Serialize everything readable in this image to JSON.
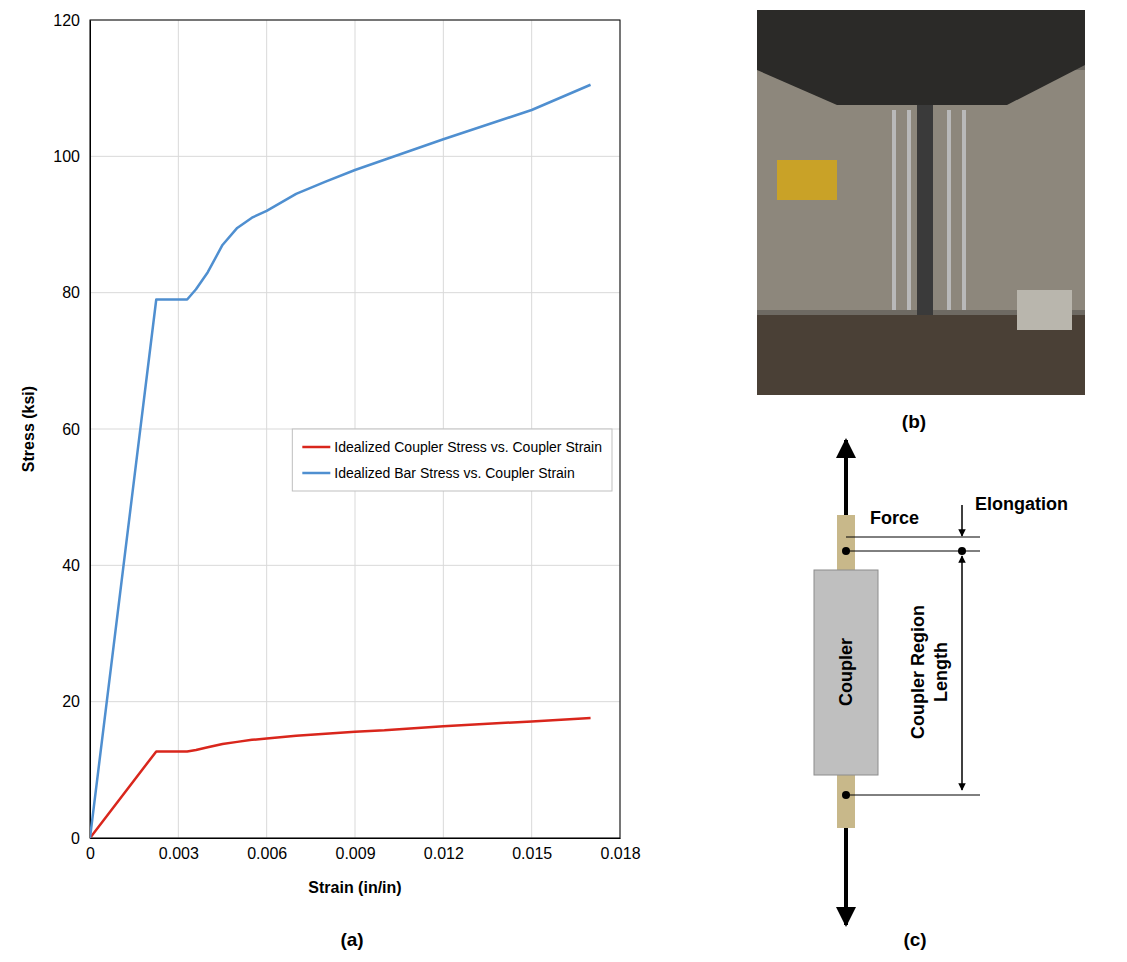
{
  "chart_data": {
    "type": "line",
    "xlabel": "Strain (in/in)",
    "ylabel": "Stress (ksi)",
    "x": [
      0,
      0.00225,
      0.0033,
      0.0036,
      0.004,
      0.0045,
      0.005,
      0.0055,
      0.006,
      0.007,
      0.008,
      0.009,
      0.01,
      0.012,
      0.015,
      0.017
    ],
    "series": [
      {
        "name": "Idealized Coupler Stress vs. Coupler Strain",
        "color": "#d9261c",
        "values": [
          0,
          12.7,
          12.7,
          12.9,
          13.3,
          13.8,
          14.1,
          14.4,
          14.6,
          15.0,
          15.3,
          15.6,
          15.8,
          16.4,
          17.1,
          17.6
        ]
      },
      {
        "name": "Idealized Bar Stress vs. Coupler Strain",
        "color": "#4f8fd0",
        "values": [
          0,
          79,
          79,
          80.5,
          83,
          87,
          89.5,
          91,
          92,
          94.5,
          96.3,
          98,
          99.5,
          102.5,
          106.8,
          110.5
        ]
      }
    ],
    "xlim": [
      0,
      0.018
    ],
    "xticks": [
      0,
      0.003,
      0.006,
      0.009,
      0.012,
      0.015,
      0.018
    ],
    "ylim": [
      0,
      120
    ],
    "yticks": [
      0,
      20,
      40,
      60,
      80,
      100,
      120
    ],
    "grid": true,
    "legend": "right"
  },
  "panel_labels": [
    "(a)",
    "(b)",
    "(c)"
  ],
  "diagram": {
    "force": "Force",
    "elongation": "Elongation",
    "coupler": "Coupler",
    "region_length": "Coupler Region Length"
  }
}
